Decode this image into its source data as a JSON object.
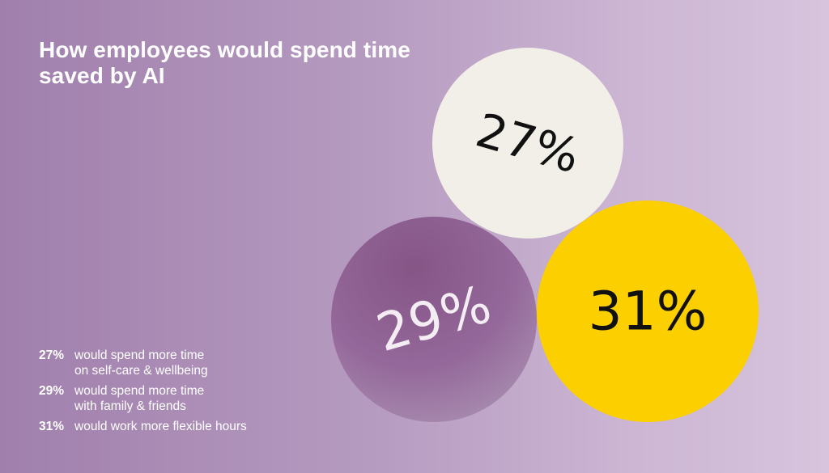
{
  "title": "How employees would spend time saved by AI",
  "colors": {
    "self_care": "#f1efe7",
    "family": "#8b5b8d",
    "flexible": "#fccf00"
  },
  "chart_data": {
    "type": "bubble",
    "title": "How employees would spend time saved by AI",
    "unit": "%",
    "items": [
      {
        "value": 27,
        "label": "27%",
        "description_lines": [
          "would spend more time",
          "on self-care & wellbeing"
        ],
        "color": "#f1efe7",
        "text_color": "#111111"
      },
      {
        "value": 29,
        "label": "29%",
        "description_lines": [
          "would spend more time",
          "with family & friends"
        ],
        "color": "#8b5b8d",
        "text_color": "#f4eef4"
      },
      {
        "value": 31,
        "label": "31%",
        "description_lines": [
          "would work more flexible hours"
        ],
        "color": "#fccf00",
        "text_color": "#111111"
      }
    ]
  }
}
